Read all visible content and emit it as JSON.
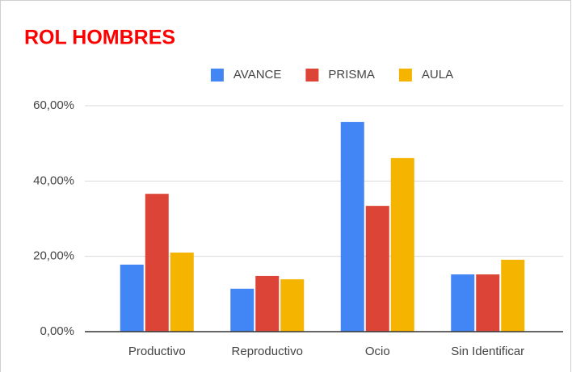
{
  "chart_data": {
    "type": "bar",
    "title": "ROL HOMBRES",
    "categories": [
      "Productivo",
      "Reproductivo",
      "Ocio",
      "Sin Identificar"
    ],
    "series": [
      {
        "name": "AVANCE",
        "color": "#4285f4",
        "values": [
          17.8,
          11.4,
          55.7,
          15.2
        ]
      },
      {
        "name": "PRISMA",
        "color": "#db4437",
        "values": [
          36.6,
          14.8,
          33.4,
          15.2
        ]
      },
      {
        "name": "AULA",
        "color": "#f4b400",
        "values": [
          21.0,
          13.9,
          46.1,
          19.1
        ]
      }
    ],
    "ylim": [
      0,
      60
    ],
    "yticks": [
      {
        "value": 0,
        "label": "0,00%"
      },
      {
        "value": 20,
        "label": "20,00%"
      },
      {
        "value": 40,
        "label": "40,00%"
      },
      {
        "value": 60,
        "label": "60,00%"
      }
    ],
    "grid": true,
    "legend": "top"
  }
}
